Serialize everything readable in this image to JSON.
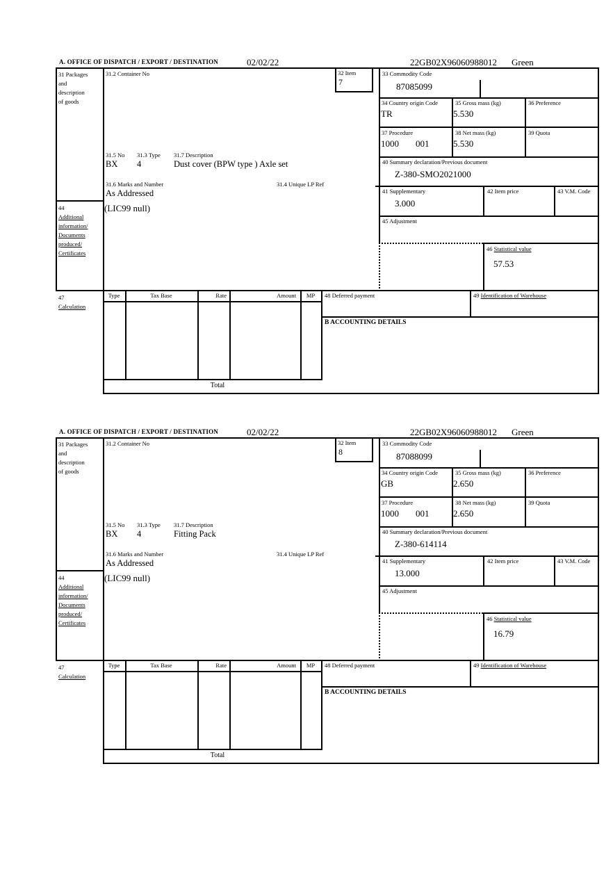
{
  "labels": {
    "office": "A. OFFICE OF DISPATCH / EXPORT / DESTINATION",
    "box31_lines": [
      "31 Packages",
      "and",
      "description",
      "of goods"
    ],
    "box31_2": "31.2 Container No",
    "box32": "32 Item",
    "box33": "33 Commodity Code",
    "box34": "34 Country origin Code",
    "box35": "35 Gross mass (kg)",
    "box36": "36 Preference",
    "box37": "37 Procedure",
    "box38": "38 Net mass (kg)",
    "box39": "39 Quota",
    "box40": "40 Summary declaration/Previous document",
    "box41": "41 Supplementary",
    "box42": "42 Item price",
    "box43": "43 V.M. Code",
    "box44_num": "44",
    "box44_lines": [
      "Additional",
      "information/",
      "Documents",
      "produced/",
      "Certificates"
    ],
    "box45": "45 Adjustment",
    "box46_num": "46",
    "box46_text": "Statistical value",
    "box47_num": "47",
    "box47_text": "Calculation",
    "box48": "48 Deferred payment",
    "box49_num": "49",
    "box49_text": "Identification of Warehouse",
    "col_type": "Type",
    "col_tax_base": "Tax Base",
    "col_rate": "Rate",
    "col_amount": "Amount",
    "col_mp": "MP",
    "accounting": "B ACCOUNTING DETAILS",
    "total": "Total",
    "box31_5": "31.5 No",
    "box31_3": "31.3 Type",
    "box31_7": "31.7 Description",
    "box31_6": "31.6 Marks and Number",
    "box31_4": "31.4 Unique LP Ref"
  },
  "items": [
    {
      "date": "02/02/22",
      "mrn": "22GB02X96060988012",
      "routing": "Green",
      "item_number": "7",
      "commodity_code": "87085099",
      "country_origin": "TR",
      "gross_mass": "5.530",
      "net_mass": "5.530",
      "procedure": "1000",
      "procedure_extra": "001",
      "package_no": "BX",
      "package_type": "4",
      "description": "Dust cover (BPW type ) Axle set",
      "marks": "As Addressed",
      "previous_document": "Z-380-SMO2021000",
      "supplementary": "3.000",
      "statistical_value": "57.53",
      "additional_info": "(LIC99 null)"
    },
    {
      "date": "02/02/22",
      "mrn": "22GB02X96060988012",
      "routing": "Green",
      "item_number": "8",
      "commodity_code": "87088099",
      "country_origin": "GB",
      "gross_mass": "2.650",
      "net_mass": "2.650",
      "procedure": "1000",
      "procedure_extra": "001",
      "package_no": "BX",
      "package_type": "4",
      "description": "Fitting Pack",
      "marks": "As Addressed",
      "previous_document": "Z-380-614114",
      "supplementary": "13.000",
      "statistical_value": "16.79",
      "additional_info": "(LIC99 null)"
    }
  ]
}
